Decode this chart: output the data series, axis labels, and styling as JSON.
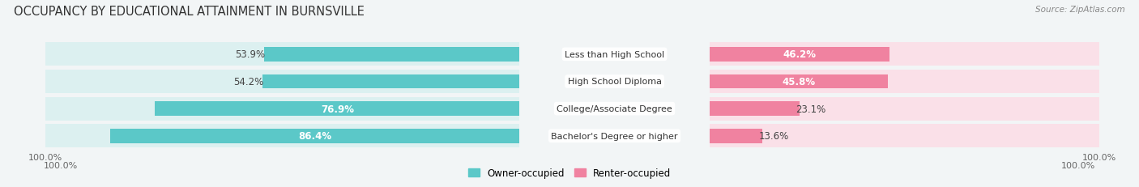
{
  "title": "OCCUPANCY BY EDUCATIONAL ATTAINMENT IN BURNSVILLE",
  "source": "Source: ZipAtlas.com",
  "categories": [
    "Less than High School",
    "High School Diploma",
    "College/Associate Degree",
    "Bachelor's Degree or higher"
  ],
  "owner_pct": [
    53.9,
    54.2,
    76.9,
    86.4
  ],
  "renter_pct": [
    46.2,
    45.8,
    23.1,
    13.6
  ],
  "owner_color": "#5BC8C8",
  "renter_color": "#F082A0",
  "owner_color_light": "#DCF0F0",
  "renter_color_light": "#FAE0E8",
  "background_color": "#f2f5f6",
  "row_bg": "#e8eef0",
  "title_fontsize": 10.5,
  "label_fontsize": 8.5,
  "pct_fontsize": 8.5,
  "tick_fontsize": 8,
  "bar_height": 0.52
}
